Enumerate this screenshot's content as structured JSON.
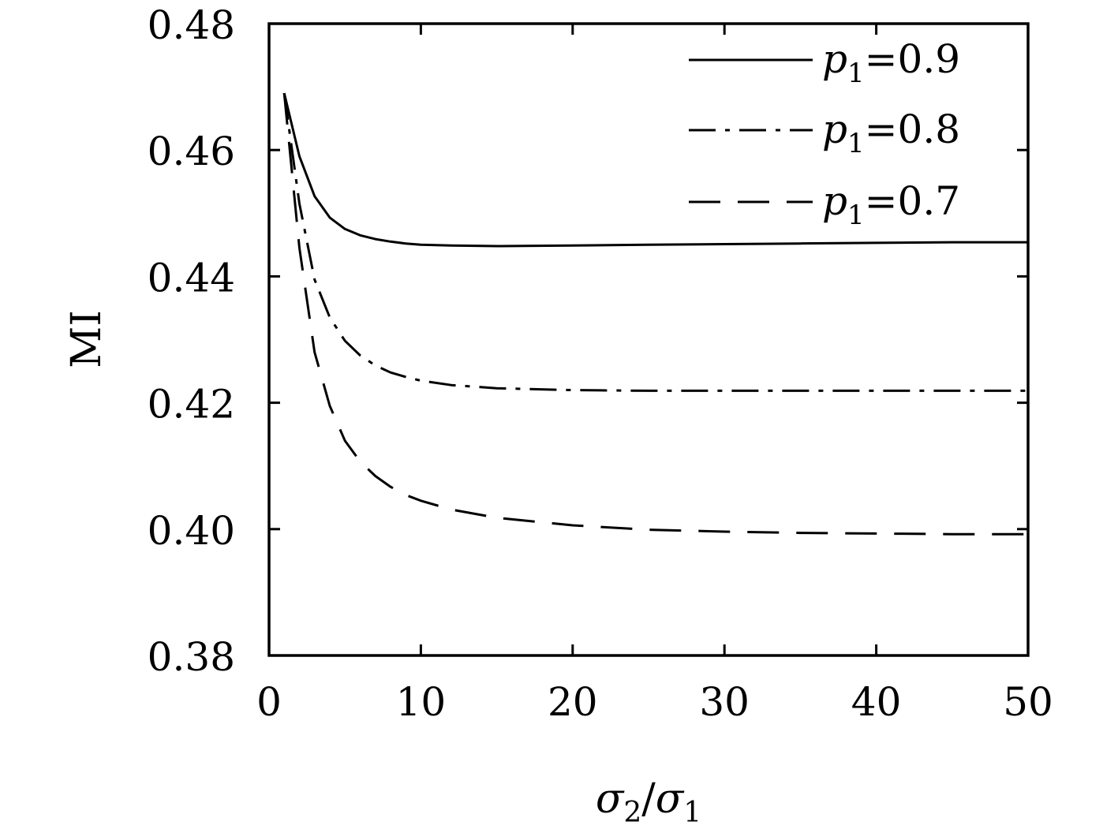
{
  "chart_data": {
    "type": "line",
    "title": "",
    "xlabel": "σ2/σ1",
    "xlabel_parts": {
      "main": "σ",
      "sub1": "2",
      "slash": "/",
      "main2": "σ",
      "sub2": "1"
    },
    "ylabel": "MI",
    "xlim": [
      0,
      50
    ],
    "ylim": [
      0.38,
      0.48
    ],
    "xticks": [
      0,
      10,
      20,
      30,
      40,
      50
    ],
    "xtick_labels": [
      "0",
      "10",
      "20",
      "30",
      "40",
      "50"
    ],
    "yticks": [
      0.38,
      0.4,
      0.42,
      0.44,
      0.46,
      0.48
    ],
    "ytick_labels": [
      "0.38",
      "0.40",
      "0.42",
      "0.44",
      "0.46",
      "0.48"
    ],
    "grid": false,
    "legend_position": "top-right",
    "series": [
      {
        "name": "p1=0.9",
        "legend": {
          "var": "p",
          "sub": "1",
          "rest": "=0.9"
        },
        "style": "solid",
        "x": [
          1,
          2,
          3,
          4,
          5,
          6,
          7,
          8,
          9,
          10,
          12,
          15,
          20,
          25,
          30,
          35,
          40,
          45,
          50
        ],
        "y": [
          0.469,
          0.459,
          0.4527,
          0.4493,
          0.4475,
          0.4465,
          0.4459,
          0.4455,
          0.4452,
          0.445,
          0.4449,
          0.4448,
          0.4449,
          0.445,
          0.4451,
          0.4452,
          0.4453,
          0.4454,
          0.4454
        ]
      },
      {
        "name": "p1=0.8",
        "legend": {
          "var": "p",
          "sub": "1",
          "rest": "=0.8"
        },
        "style": "dashdot",
        "x": [
          1,
          2,
          3,
          4,
          5,
          6,
          7,
          8,
          9,
          10,
          12,
          15,
          20,
          25,
          30,
          35,
          40,
          45,
          50
        ],
        "y": [
          0.469,
          0.4515,
          0.4395,
          0.4335,
          0.4298,
          0.4275,
          0.4259,
          0.4248,
          0.4241,
          0.4235,
          0.4228,
          0.4223,
          0.422,
          0.4219,
          0.4219,
          0.4219,
          0.4219,
          0.4219,
          0.4219
        ]
      },
      {
        "name": "p1=0.7",
        "legend": {
          "var": "p",
          "sub": "1",
          "rest": "=0.7"
        },
        "style": "dashed",
        "x": [
          1,
          2,
          3,
          4,
          5,
          6,
          7,
          8,
          9,
          10,
          12,
          15,
          20,
          25,
          30,
          35,
          40,
          45,
          50
        ],
        "y": [
          0.469,
          0.4445,
          0.428,
          0.4195,
          0.414,
          0.4107,
          0.4084,
          0.4067,
          0.4054,
          0.4045,
          0.4031,
          0.4018,
          0.4006,
          0.3999,
          0.3996,
          0.3994,
          0.3993,
          0.3992,
          0.3992
        ]
      }
    ]
  }
}
